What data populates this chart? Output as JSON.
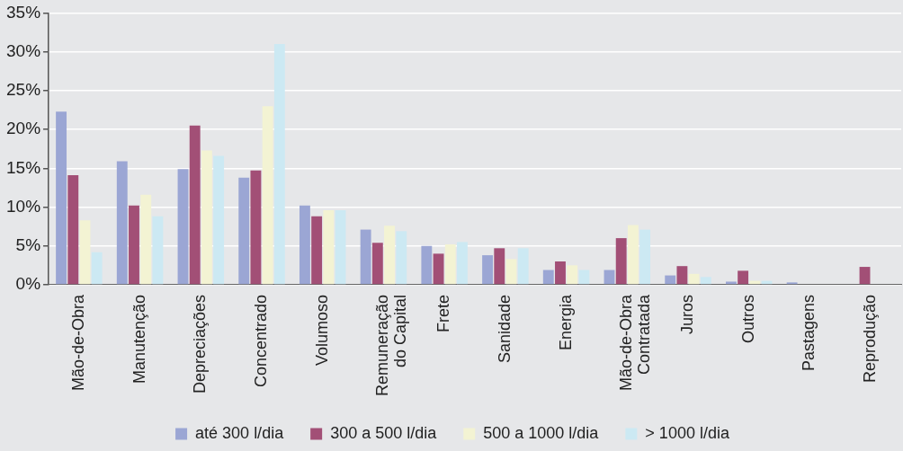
{
  "chart_data": {
    "type": "bar",
    "categories": [
      "Mão-de-Obra",
      "Manutenção",
      "Depreciações",
      "Concentrado",
      "Volumoso",
      "Remuneração\ndo Capital",
      "Frete",
      "Sanidade",
      "Energia",
      "Mão-de-Obra\nContratada",
      "Juros",
      "Outros",
      "Pastagens",
      "Reprodução"
    ],
    "series": [
      {
        "name": "até 300 l/dia",
        "color": "#9ba6d4",
        "values": [
          22.3,
          15.9,
          14.9,
          13.8,
          10.2,
          7.1,
          5.0,
          3.8,
          1.9,
          1.9,
          1.2,
          0.4,
          0.3,
          null
        ]
      },
      {
        "name": "300 a 500 l/dia",
        "color": "#a24f76",
        "values": [
          14.1,
          10.2,
          20.5,
          14.7,
          8.8,
          5.4,
          4.0,
          4.7,
          3.0,
          6.0,
          2.4,
          1.8,
          null,
          2.3
        ]
      },
      {
        "name": "500 a 1000 l/dia",
        "color": "#f3f3d3",
        "values": [
          8.3,
          11.6,
          17.3,
          23.0,
          9.6,
          7.6,
          5.2,
          3.3,
          2.5,
          7.7,
          1.4,
          0.5,
          null,
          null
        ]
      },
      {
        "name": "> 1000 l/dia",
        "color": "#cce9f3",
        "values": [
          4.2,
          8.8,
          16.6,
          31.0,
          9.6,
          6.9,
          5.5,
          4.7,
          1.9,
          7.1,
          1.0,
          0.5,
          null,
          null
        ]
      }
    ],
    "ylim": [
      0,
      35
    ],
    "yticks": [
      {
        "value": 0,
        "label": "0%"
      },
      {
        "value": 5,
        "label": "5%"
      },
      {
        "value": 10,
        "label": "10%"
      },
      {
        "value": 15,
        "label": "15%"
      },
      {
        "value": 20,
        "label": "20%"
      },
      {
        "value": 25,
        "label": "25%"
      },
      {
        "value": 30,
        "label": "30%"
      },
      {
        "value": 35,
        "label": "35%"
      }
    ],
    "grid": "y",
    "legend": "bottom"
  }
}
